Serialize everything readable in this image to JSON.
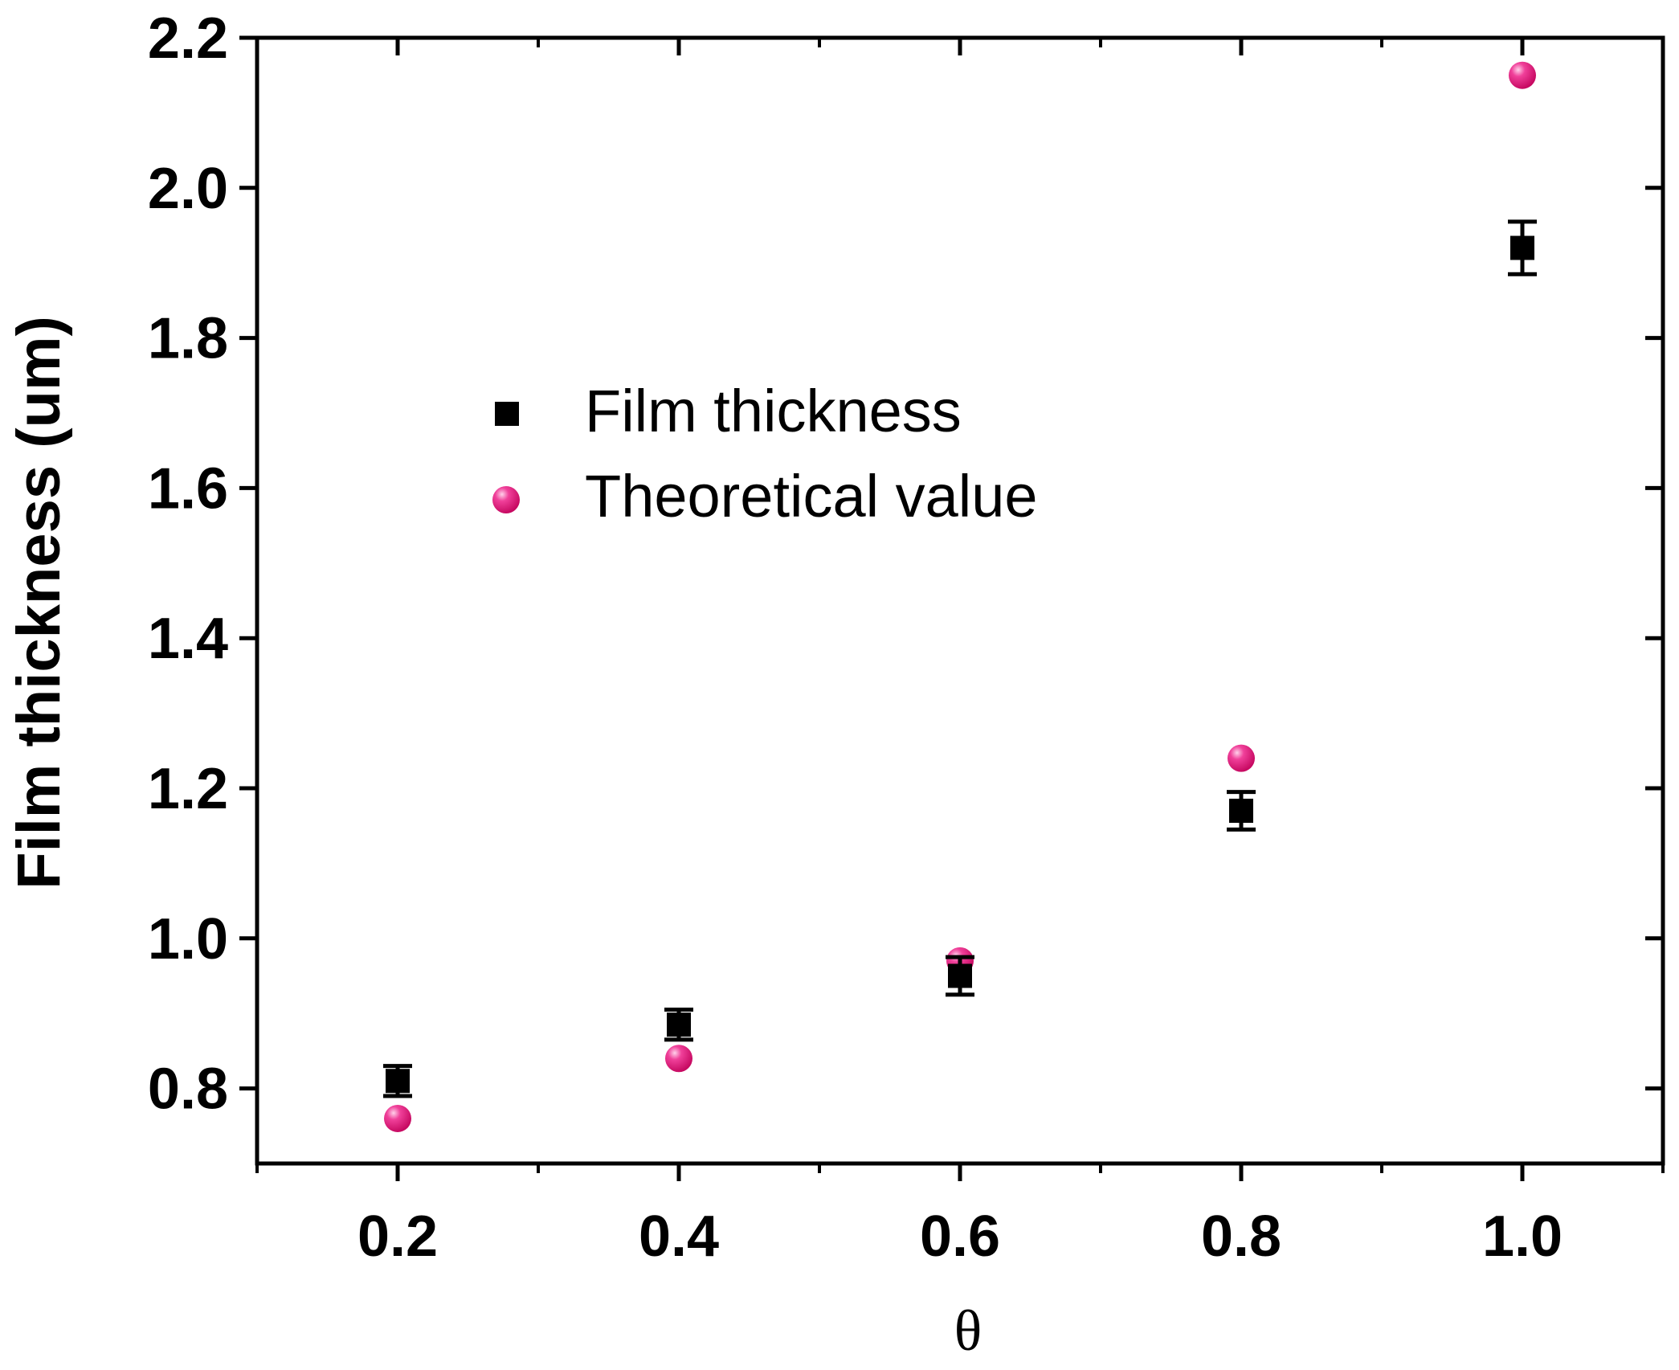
{
  "chart_data": {
    "type": "scatter",
    "xlabel": "θ",
    "ylabel": "Film thickness (um)",
    "xlim": [
      0.1,
      1.1
    ],
    "ylim": [
      0.7,
      2.2
    ],
    "x_ticks": [
      "0.2",
      "0.4",
      "0.6",
      "0.8",
      "1.0"
    ],
    "y_ticks": [
      "0.8",
      "1.0",
      "1.2",
      "1.4",
      "1.6",
      "1.8",
      "2.0",
      "2.2"
    ],
    "legend_position": "center-left",
    "series": [
      {
        "name": "Film thickness",
        "marker": "square",
        "color": "#000000",
        "points": [
          {
            "x": 0.2,
            "y": 0.81,
            "err": 0.02
          },
          {
            "x": 0.4,
            "y": 0.885,
            "err": 0.02
          },
          {
            "x": 0.6,
            "y": 0.95,
            "err": 0.025
          },
          {
            "x": 0.8,
            "y": 1.17,
            "err": 0.025
          },
          {
            "x": 1.0,
            "y": 1.92,
            "err": 0.035
          }
        ]
      },
      {
        "name": "Theoretical value",
        "marker": "sphere",
        "color": "#e8177f",
        "points": [
          {
            "x": 0.2,
            "y": 0.76
          },
          {
            "x": 0.4,
            "y": 0.84
          },
          {
            "x": 0.6,
            "y": 0.97
          },
          {
            "x": 0.8,
            "y": 1.24
          },
          {
            "x": 1.0,
            "y": 2.15
          }
        ]
      }
    ]
  }
}
